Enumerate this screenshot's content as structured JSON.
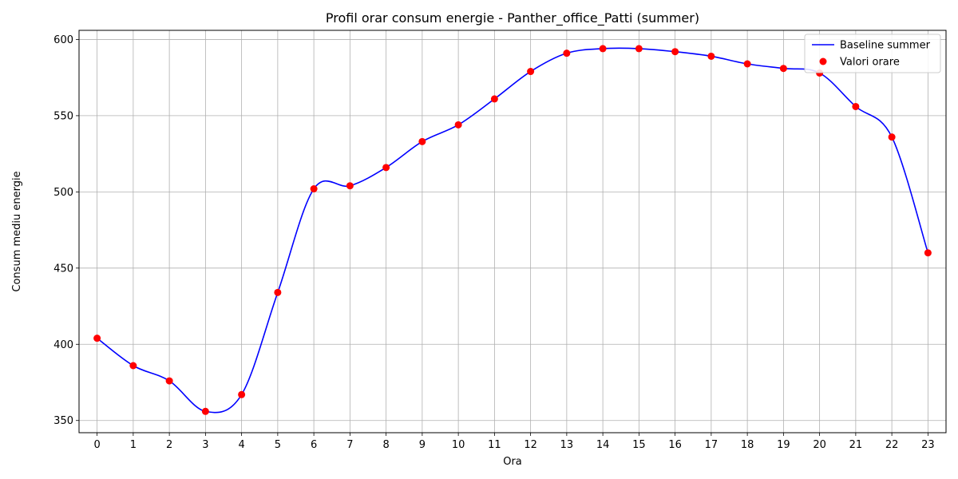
{
  "chart_data": {
    "type": "line",
    "title": "Profil orar consum energie - Panther_office_Patti (summer)",
    "xlabel": "Ora",
    "ylabel": "Consum mediu energie",
    "x": [
      0,
      1,
      2,
      3,
      4,
      5,
      6,
      7,
      8,
      9,
      10,
      11,
      12,
      13,
      14,
      15,
      16,
      17,
      18,
      19,
      20,
      21,
      22,
      23
    ],
    "xticks": [
      "0",
      "1",
      "2",
      "3",
      "4",
      "5",
      "6",
      "7",
      "8",
      "9",
      "10",
      "11",
      "12",
      "13",
      "14",
      "15",
      "16",
      "17",
      "18",
      "19",
      "20",
      "21",
      "22",
      "23"
    ],
    "xlim": [
      -0.5,
      23.5
    ],
    "ylim": [
      342,
      606
    ],
    "yticks": [
      350,
      400,
      450,
      500,
      550,
      600
    ],
    "ytick_labels": [
      "350",
      "400",
      "450",
      "500",
      "550",
      "600"
    ],
    "grid": true,
    "legend_position": "top-right",
    "series": [
      {
        "name": "Baseline summer",
        "kind": "line",
        "color": "#0000ff",
        "values": [
          404,
          386,
          376,
          356,
          367,
          434,
          502,
          504,
          516,
          533,
          544,
          561,
          579,
          591,
          594,
          594,
          592,
          589,
          584,
          581,
          578,
          556,
          536,
          460
        ]
      },
      {
        "name": "Valori orare",
        "kind": "scatter",
        "color": "#ff0000",
        "values": [
          404,
          386,
          376,
          356,
          367,
          434,
          502,
          504,
          516,
          533,
          544,
          561,
          579,
          591,
          594,
          594,
          592,
          589,
          584,
          581,
          578,
          556,
          536,
          460
        ]
      }
    ]
  }
}
